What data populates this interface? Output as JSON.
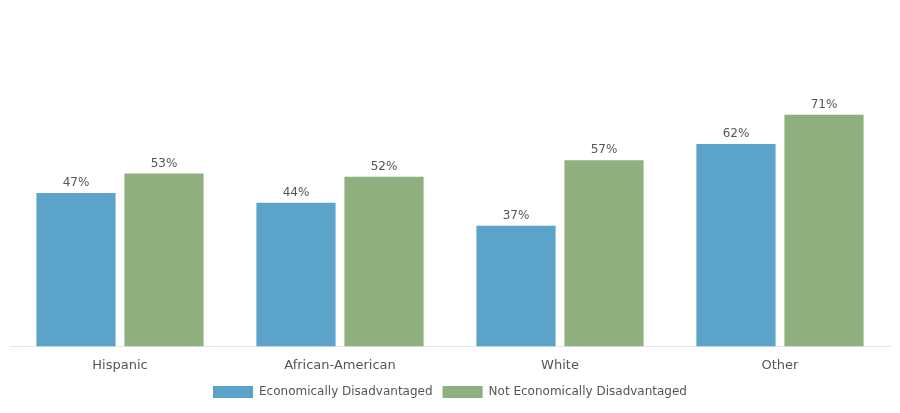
{
  "chart_data": {
    "type": "bar",
    "categories": [
      "Hispanic",
      "African-American",
      "White",
      "Other"
    ],
    "series": [
      {
        "name": "Economically Disadvantaged",
        "color": "#5BA3C9",
        "values": [
          47,
          44,
          37,
          62
        ],
        "value_labels": [
          "47%",
          "44%",
          "37%",
          "62%"
        ]
      },
      {
        "name": "Not Economically Disadvantaged",
        "color": "#8FAF7E",
        "values": [
          53,
          52,
          57,
          71
        ],
        "value_labels": [
          "53%",
          "52%",
          "57%",
          "71%"
        ]
      }
    ],
    "ylim": [
      0,
      100
    ],
    "grid": false,
    "legend": "bottom",
    "data_labels": true,
    "tick_labels": "x"
  }
}
